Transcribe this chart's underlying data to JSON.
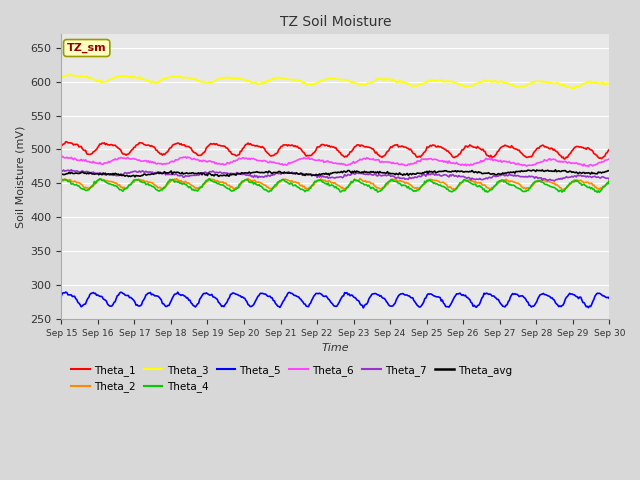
{
  "title": "TZ Soil Moisture",
  "xlabel": "Time",
  "ylabel": "Soil Moisture (mV)",
  "ylim": [
    250,
    670
  ],
  "yticks": [
    250,
    300,
    350,
    400,
    450,
    500,
    550,
    600,
    650
  ],
  "x_labels": [
    "Sep 15",
    "Sep 16",
    "Sep 17",
    "Sep 18",
    "Sep 19",
    "Sep 20",
    "Sep 21",
    "Sep 22",
    "Sep 23",
    "Sep 24",
    "Sep 25",
    "Sep 26",
    "Sep 27",
    "Sep 28",
    "Sep 29",
    "Sep 30"
  ],
  "series": [
    {
      "name": "Theta_1",
      "color": "#ff0000",
      "base": 503,
      "trend": -0.4,
      "amp": 8,
      "freq": 1.0,
      "phase": 0.0
    },
    {
      "name": "Theta_2",
      "color": "#ff8800",
      "base": 450,
      "trend": -0.05,
      "amp": 6,
      "freq": 1.0,
      "phase": 0.3
    },
    {
      "name": "Theta_3",
      "color": "#ffff00",
      "base": 606,
      "trend": -0.7,
      "amp": 4,
      "freq": 0.7,
      "phase": 0.0
    },
    {
      "name": "Theta_4",
      "color": "#00cc00",
      "base": 448,
      "trend": -0.15,
      "amp": 7,
      "freq": 1.0,
      "phase": 0.8
    },
    {
      "name": "Theta_5",
      "color": "#0000ff",
      "base": 280,
      "trend": -0.1,
      "amp": 9,
      "freq": 1.3,
      "phase": 0.2
    },
    {
      "name": "Theta_6",
      "color": "#ff44ff",
      "base": 484,
      "trend": -0.25,
      "amp": 4,
      "freq": 0.6,
      "phase": 1.0
    },
    {
      "name": "Theta_7",
      "color": "#9933cc",
      "base": 466,
      "trend": -0.55,
      "amp": 3,
      "freq": 0.5,
      "phase": 0.5
    },
    {
      "name": "Theta_avg",
      "color": "#000000",
      "base": 463,
      "trend": 0.3,
      "amp": 2,
      "freq": 0.4,
      "phase": 0.0
    }
  ],
  "legend_label": "TZ_sm",
  "legend_box_facecolor": "#ffffc0",
  "legend_box_edgecolor": "#999900",
  "legend_text_color": "#990000",
  "plot_bg_color": "#e8e8e8",
  "fig_bg_color": "#d8d8d8",
  "grid_color": "#ffffff",
  "n_points": 500
}
